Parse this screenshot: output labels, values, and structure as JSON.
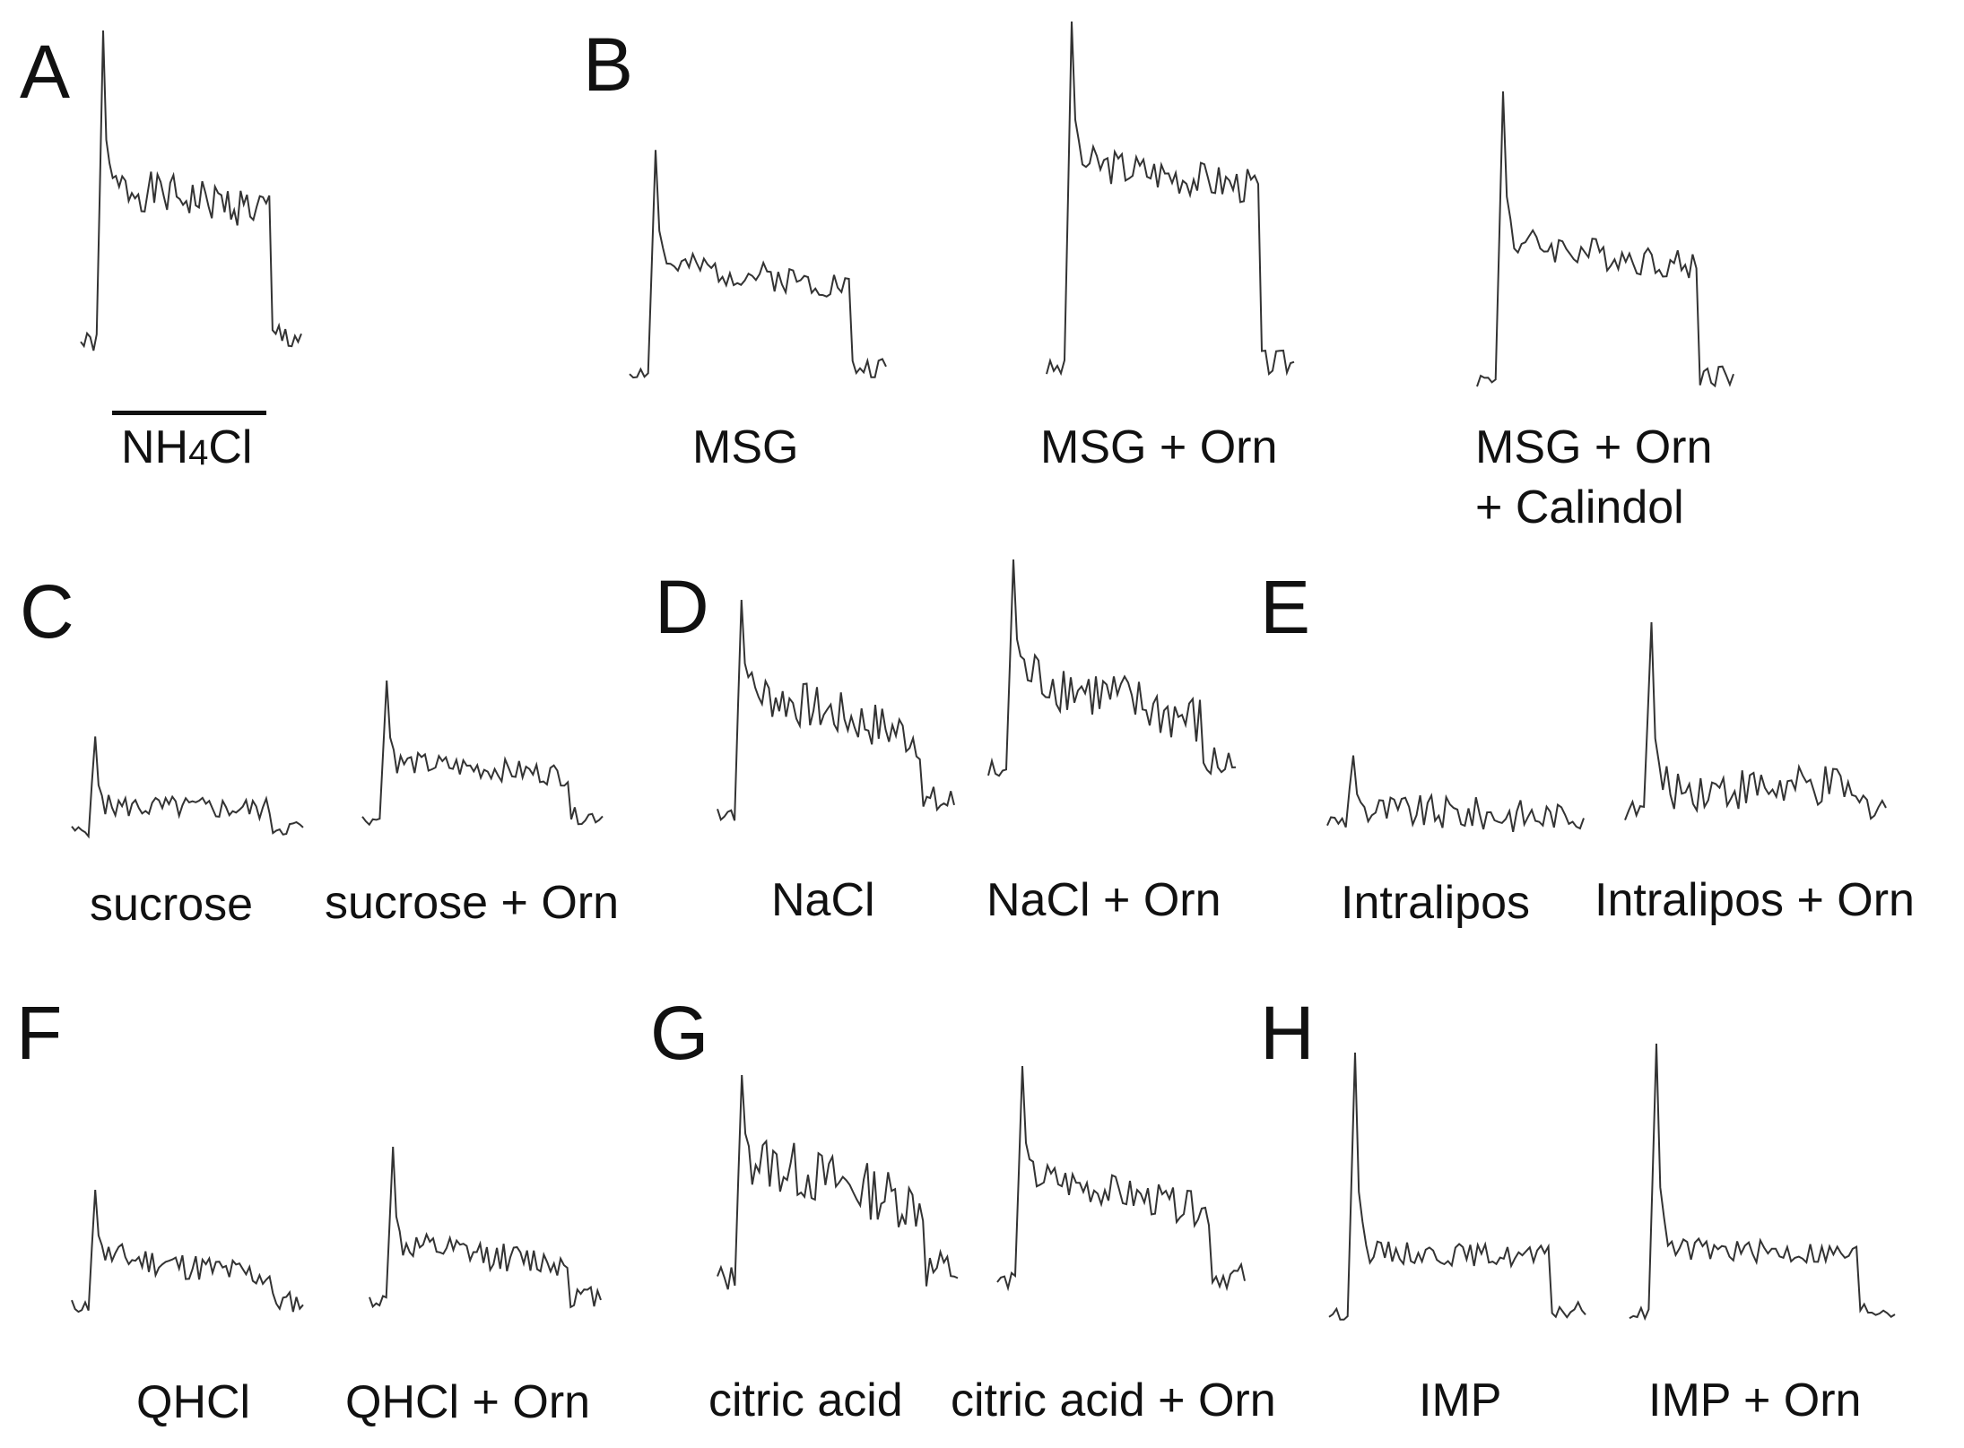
{
  "figure": {
    "panels": [
      {
        "letter": "A",
        "traces": [
          {
            "label_main": "NH",
            "label_sub": "4",
            "label_tail": "Cl"
          }
        ],
        "stimulus_bar": true
      },
      {
        "letter": "B",
        "traces": [
          {
            "label": "MSG"
          },
          {
            "label": "MSG + Orn"
          },
          {
            "label": "MSG + Orn",
            "label_line2": "+ Calindol"
          }
        ]
      },
      {
        "letter": "C",
        "traces": [
          {
            "label": "sucrose"
          },
          {
            "label": "sucrose + Orn"
          }
        ]
      },
      {
        "letter": "D",
        "traces": [
          {
            "label": "NaCl"
          },
          {
            "label": "NaCl + Orn"
          }
        ]
      },
      {
        "letter": "E",
        "traces": [
          {
            "label": "Intralipos"
          },
          {
            "label": "Intralipos + Orn"
          }
        ]
      },
      {
        "letter": "F",
        "traces": [
          {
            "label": "QHCl"
          },
          {
            "label": "QHCl + Orn"
          }
        ]
      },
      {
        "letter": "G",
        "traces": [
          {
            "label": "citric acid"
          },
          {
            "label": "citric acid + Orn"
          }
        ]
      },
      {
        "letter": "H",
        "traces": [
          {
            "label": "IMP"
          },
          {
            "label": "IMP + Orn"
          }
        ]
      }
    ]
  },
  "trace_shapes": {
    "A": {
      "base": 0.1,
      "peak": 1.0,
      "plateau": [
        0.55,
        0.48
      ],
      "noise": 0.06,
      "seed": 1
    },
    "B1": {
      "base": 0.08,
      "peak": 0.85,
      "plateau": [
        0.45,
        0.38
      ],
      "noise": 0.05,
      "seed": 2
    },
    "B2": {
      "base": 0.06,
      "peak": 1.0,
      "plateau": [
        0.62,
        0.55
      ],
      "noise": 0.05,
      "seed": 3
    },
    "B3": {
      "base": 0.05,
      "peak": 0.95,
      "plateau": [
        0.48,
        0.4
      ],
      "noise": 0.05,
      "seed": 4
    },
    "C1": {
      "base": 0.15,
      "peak": 0.8,
      "plateau": [
        0.32,
        0.3
      ],
      "noise": 0.08,
      "seed": 5
    },
    "C2": {
      "base": 0.15,
      "peak": 1.0,
      "plateau": [
        0.5,
        0.42
      ],
      "noise": 0.07,
      "seed": 6
    },
    "D1": {
      "base": 0.12,
      "peak": 1.0,
      "plateau": [
        0.62,
        0.42
      ],
      "noise": 0.1,
      "seed": 7
    },
    "D2": {
      "base": 0.25,
      "peak": 1.0,
      "plateau": [
        0.6,
        0.42
      ],
      "noise": 0.1,
      "seed": 8
    },
    "E1": {
      "base": 0.25,
      "peak": 0.7,
      "plateau": [
        0.32,
        0.28
      ],
      "noise": 0.12,
      "seed": 9
    },
    "E2": {
      "base": 0.15,
      "peak": 1.0,
      "plateau": [
        0.25,
        0.25
      ],
      "noise": 0.1,
      "seed": 10
    },
    "F1": {
      "base": 0.15,
      "peak": 0.95,
      "plateau": [
        0.5,
        0.35
      ],
      "noise": 0.1,
      "seed": 11
    },
    "F2": {
      "base": 0.15,
      "peak": 1.0,
      "plateau": [
        0.45,
        0.35
      ],
      "noise": 0.08,
      "seed": 12
    },
    "G1": {
      "base": 0.15,
      "peak": 1.0,
      "plateau": [
        0.65,
        0.45
      ],
      "noise": 0.12,
      "seed": 13
    },
    "G2": {
      "base": 0.12,
      "peak": 1.0,
      "plateau": [
        0.55,
        0.4
      ],
      "noise": 0.07,
      "seed": 14
    },
    "H1": {
      "base": 0.08,
      "peak": 1.0,
      "plateau": [
        0.3,
        0.28
      ],
      "noise": 0.04,
      "seed": 15
    },
    "H2": {
      "base": 0.08,
      "peak": 1.0,
      "plateau": [
        0.3,
        0.28
      ],
      "noise": 0.04,
      "seed": 16
    }
  }
}
